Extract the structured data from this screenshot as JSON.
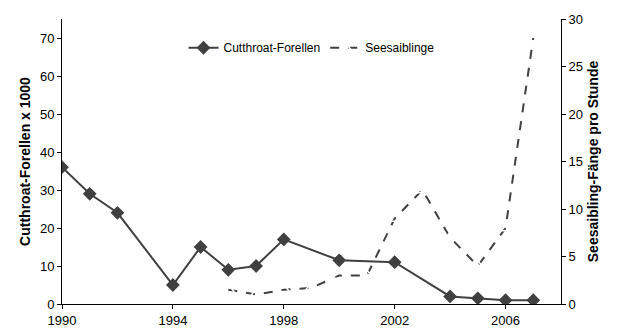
{
  "chart_data": {
    "type": "line",
    "xlabel": null,
    "ylabel": "Cutthroat-Forellen x 1000",
    "y2label": "Seesaibling-Fänge pro Stunde",
    "xlim": [
      1990,
      2008
    ],
    "xticks": [
      1990,
      1994,
      1998,
      2002,
      2006
    ],
    "ylim": [
      0,
      75
    ],
    "yticks": [
      0,
      10,
      20,
      30,
      40,
      50,
      60,
      70
    ],
    "y2lim": [
      0,
      30
    ],
    "y2ticks": [
      0,
      5,
      10,
      15,
      20,
      25,
      30
    ],
    "grid": false,
    "legend": "top",
    "series": [
      {
        "name": "Cutthroat-Forellen",
        "color": "#404040",
        "marker": "diamond",
        "line_style": "solid",
        "x": [
          1990,
          1991,
          1992,
          1994,
          1995,
          1996,
          1997,
          1998,
          2000,
          2002,
          2004,
          2005,
          2006,
          2007
        ],
        "values": [
          36,
          29,
          24,
          5,
          15,
          9,
          10,
          17,
          11.5,
          11,
          2,
          1.5,
          1,
          1
        ]
      },
      {
        "name": "Seesaiblinge",
        "color": "#404040",
        "marker": "triangle-up-open",
        "line_style": "dash",
        "axis": "y2",
        "x": [
          1996,
          1997,
          1998,
          1999,
          2000,
          2001,
          2002,
          2003,
          2004,
          2005,
          2006,
          2007
        ],
        "values": [
          1.5,
          1,
          1.5,
          1.7,
          3,
          3,
          9,
          12,
          7,
          4,
          8,
          28
        ]
      }
    ]
  }
}
